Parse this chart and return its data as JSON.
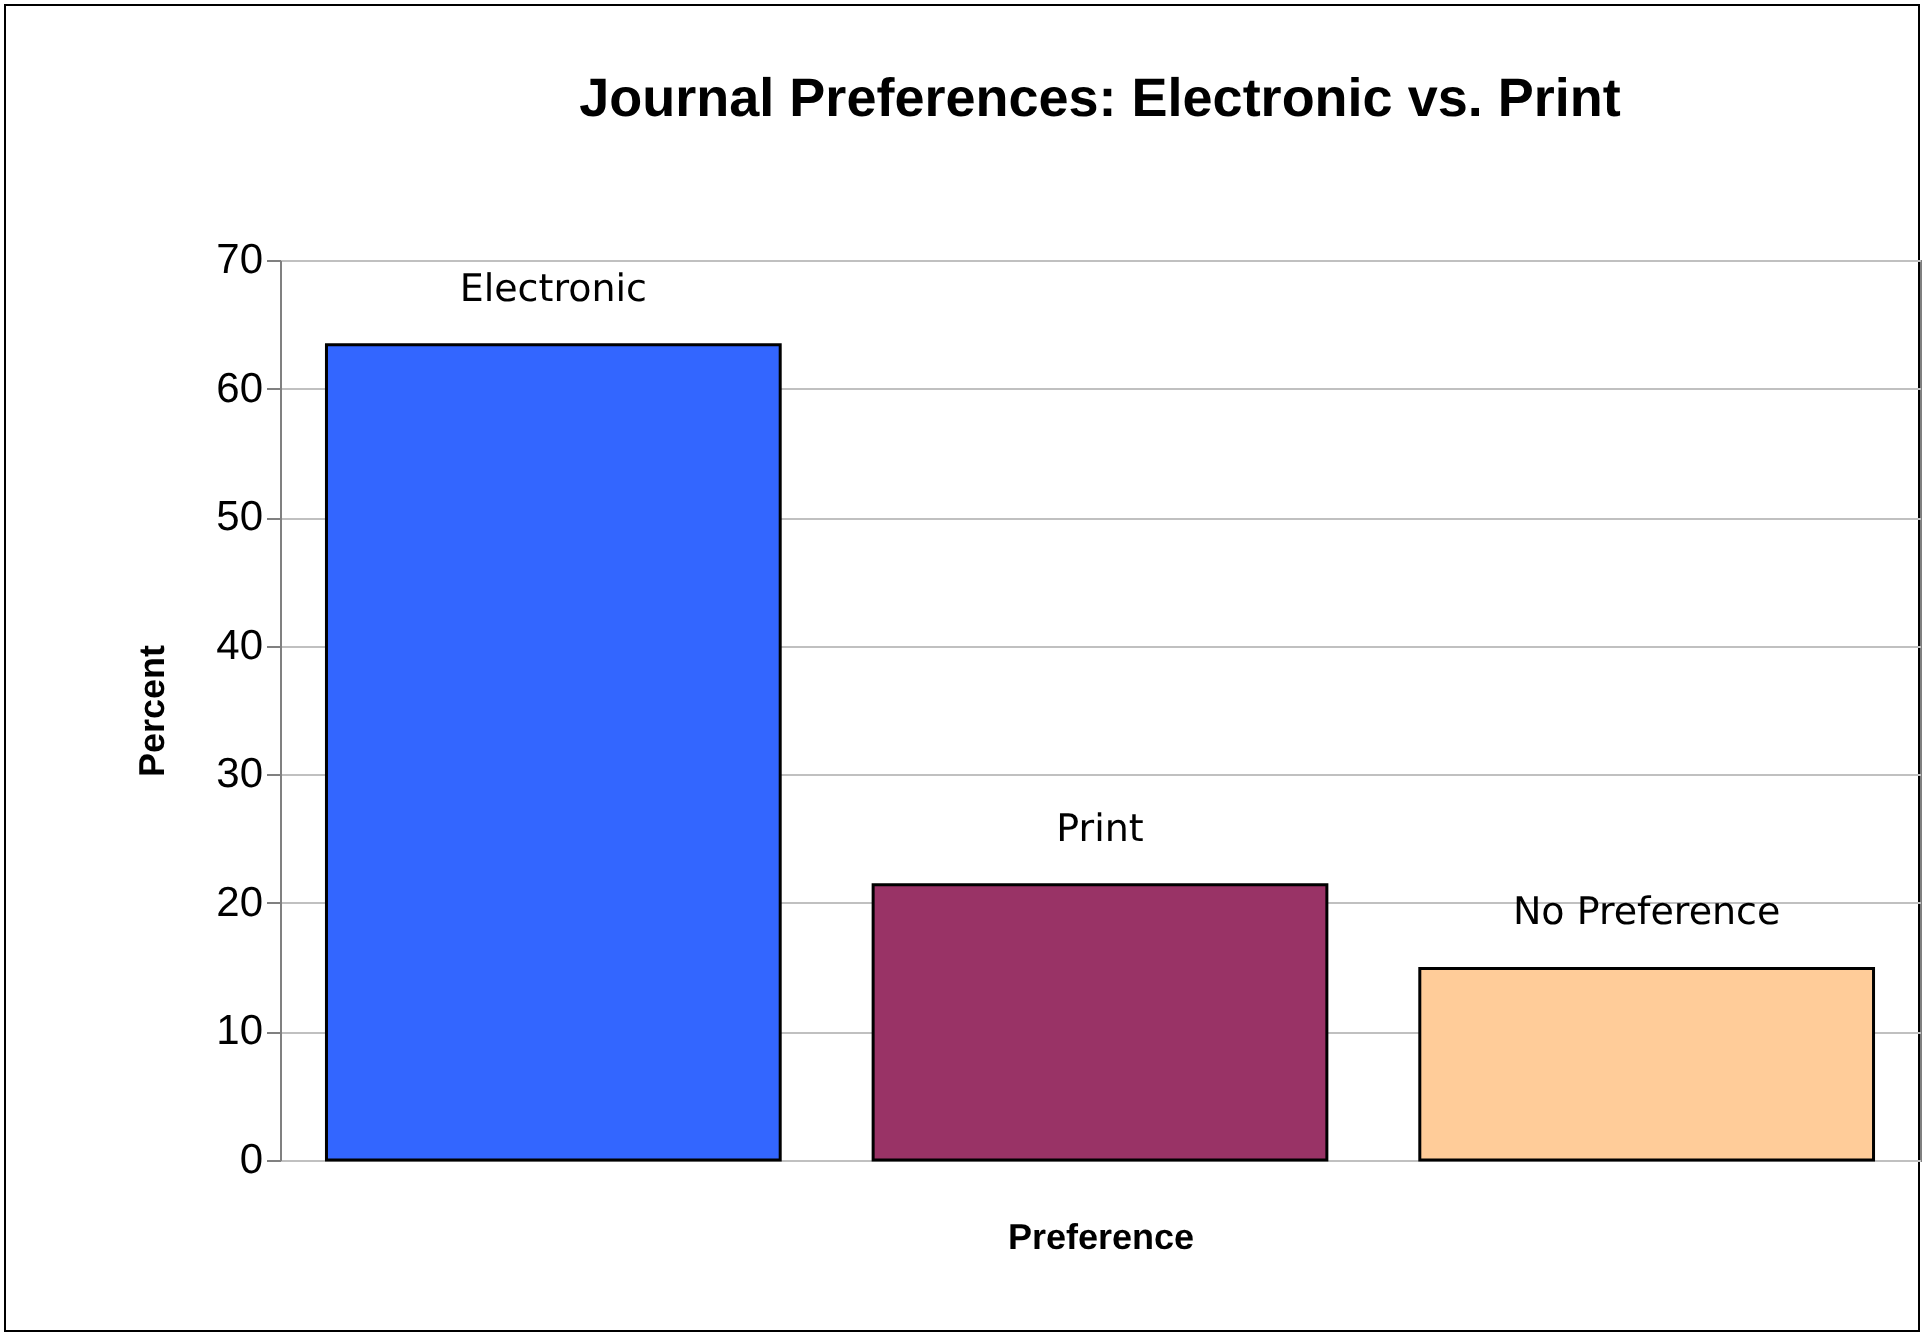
{
  "chart_data": {
    "type": "bar",
    "title": "Journal Preferences: Electronic vs. Print",
    "xlabel": "Preference",
    "ylabel": "Percent",
    "categories": [
      "Electronic",
      "Print",
      "No Preference"
    ],
    "values": [
      63.4,
      21.4,
      14.9
    ],
    "colors": [
      "#3366ff",
      "#993366",
      "#ffcc99"
    ],
    "ylim": [
      0,
      70
    ],
    "yticks": [
      0,
      10,
      20,
      30,
      40,
      50,
      60,
      70
    ],
    "grid": "y",
    "tick_labels": "y"
  }
}
